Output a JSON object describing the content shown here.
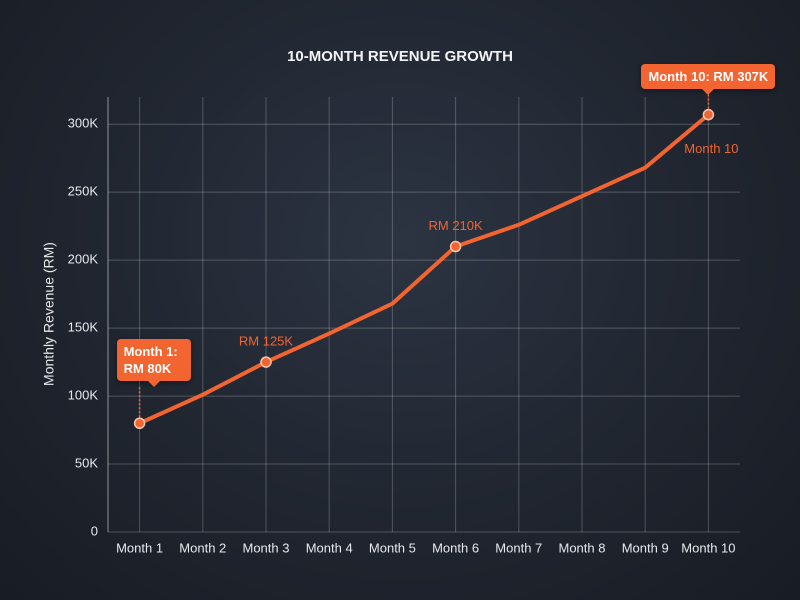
{
  "chart_data": {
    "type": "line",
    "title": "10-MONTH REVENUE GROWTH",
    "y_label": "Monthly Revenue (RM)",
    "categories": [
      "Month 1",
      "Month 2",
      "Month 3",
      "Month 4",
      "Month 5",
      "Month 6",
      "Month 7",
      "Month 8",
      "Month 9",
      "Month 10"
    ],
    "values": [
      80000,
      101000,
      125000,
      146000,
      168000,
      210000,
      226000,
      247000,
      268000,
      307000
    ],
    "value_labels": [
      "Month 1: RM 80K",
      null,
      "RM 125K",
      null,
      null,
      "RM 210K",
      null,
      null,
      null,
      "Month 10: RM 307K"
    ],
    "end_label": "Month 10",
    "color": "#f26430",
    "ylim": [
      0,
      320000
    ],
    "yticks": [
      0,
      {
        "value": 50000,
        "label": "50K"
      },
      {
        "value": 100000,
        "label": "100K"
      },
      {
        "value": 150000,
        "label": "150K"
      },
      {
        "value": 200000,
        "label": "200K"
      },
      {
        "value": 250000,
        "label": "250K"
      },
      {
        "value": 300000,
        "label": "300K"
      }
    ],
    "grid": true
  }
}
